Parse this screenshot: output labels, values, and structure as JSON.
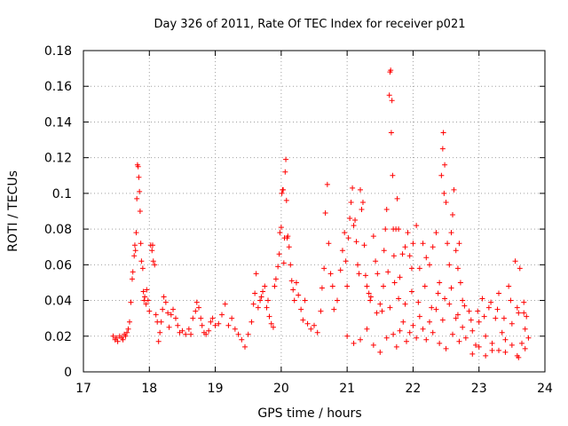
{
  "chart_data": {
    "type": "scatter",
    "title": "Day 326 of 2011, Rate Of TEC Index for receiver p021",
    "xlabel": "GPS time / hours",
    "ylabel": "ROTI / TECUs",
    "xlim": [
      17,
      24
    ],
    "ylim": [
      0,
      0.18
    ],
    "xticks": [
      17,
      18,
      19,
      20,
      21,
      22,
      23,
      24
    ],
    "yticks": [
      0,
      0.02,
      0.04,
      0.06,
      0.08,
      0.1,
      0.12,
      0.14,
      0.16,
      0.18
    ],
    "grid": true,
    "marker": "+",
    "color": "#ff0000",
    "series": [
      {
        "name": "p021",
        "points": [
          [
            17.45,
            0.02
          ],
          [
            17.48,
            0.018
          ],
          [
            17.5,
            0.019
          ],
          [
            17.52,
            0.017
          ],
          [
            17.55,
            0.02
          ],
          [
            17.58,
            0.019
          ],
          [
            17.6,
            0.018
          ],
          [
            17.62,
            0.021
          ],
          [
            17.64,
            0.02
          ],
          [
            17.66,
            0.022
          ],
          [
            17.68,
            0.024
          ],
          [
            17.7,
            0.028
          ],
          [
            17.72,
            0.039
          ],
          [
            17.74,
            0.052
          ],
          [
            17.75,
            0.056
          ],
          [
            17.77,
            0.065
          ],
          [
            17.78,
            0.071
          ],
          [
            17.79,
            0.068
          ],
          [
            17.8,
            0.078
          ],
          [
            17.81,
            0.097
          ],
          [
            17.82,
            0.116
          ],
          [
            17.83,
            0.115
          ],
          [
            17.84,
            0.109
          ],
          [
            17.85,
            0.101
          ],
          [
            17.86,
            0.09
          ],
          [
            17.87,
            0.072
          ],
          [
            17.88,
            0.062
          ],
          [
            17.9,
            0.058
          ],
          [
            17.91,
            0.045
          ],
          [
            17.92,
            0.04
          ],
          [
            17.93,
            0.042
          ],
          [
            17.95,
            0.038
          ],
          [
            17.96,
            0.046
          ],
          [
            17.98,
            0.04
          ],
          [
            18.0,
            0.034
          ],
          [
            18.02,
            0.071
          ],
          [
            18.04,
            0.068
          ],
          [
            18.05,
            0.071
          ],
          [
            18.06,
            0.062
          ],
          [
            18.08,
            0.06
          ],
          [
            18.1,
            0.032
          ],
          [
            18.12,
            0.028
          ],
          [
            18.14,
            0.017
          ],
          [
            18.16,
            0.022
          ],
          [
            18.18,
            0.028
          ],
          [
            18.2,
            0.035
          ],
          [
            18.22,
            0.042
          ],
          [
            18.25,
            0.039
          ],
          [
            18.28,
            0.033
          ],
          [
            18.3,
            0.025
          ],
          [
            18.33,
            0.032
          ],
          [
            18.36,
            0.035
          ],
          [
            18.4,
            0.03
          ],
          [
            18.43,
            0.026
          ],
          [
            18.46,
            0.022
          ],
          [
            18.5,
            0.023
          ],
          [
            18.55,
            0.021
          ],
          [
            18.6,
            0.024
          ],
          [
            18.63,
            0.021
          ],
          [
            18.66,
            0.03
          ],
          [
            18.7,
            0.034
          ],
          [
            18.72,
            0.039
          ],
          [
            18.75,
            0.036
          ],
          [
            18.78,
            0.03
          ],
          [
            18.8,
            0.026
          ],
          [
            18.83,
            0.022
          ],
          [
            18.86,
            0.021
          ],
          [
            18.9,
            0.023
          ],
          [
            18.93,
            0.028
          ],
          [
            18.96,
            0.03
          ],
          [
            19.0,
            0.026
          ],
          [
            19.05,
            0.027
          ],
          [
            19.1,
            0.032
          ],
          [
            19.15,
            0.038
          ],
          [
            19.2,
            0.026
          ],
          [
            19.25,
            0.03
          ],
          [
            19.3,
            0.024
          ],
          [
            19.35,
            0.021
          ],
          [
            19.4,
            0.018
          ],
          [
            19.45,
            0.014
          ],
          [
            19.5,
            0.021
          ],
          [
            19.55,
            0.028
          ],
          [
            19.58,
            0.038
          ],
          [
            19.6,
            0.044
          ],
          [
            19.62,
            0.055
          ],
          [
            19.65,
            0.036
          ],
          [
            19.68,
            0.04
          ],
          [
            19.7,
            0.042
          ],
          [
            19.72,
            0.045
          ],
          [
            19.75,
            0.048
          ],
          [
            19.78,
            0.036
          ],
          [
            19.8,
            0.04
          ],
          [
            19.82,
            0.031
          ],
          [
            19.85,
            0.027
          ],
          [
            19.88,
            0.025
          ],
          [
            19.9,
            0.048
          ],
          [
            19.92,
            0.052
          ],
          [
            19.95,
            0.059
          ],
          [
            19.97,
            0.066
          ],
          [
            19.98,
            0.078
          ],
          [
            20.0,
            0.081
          ],
          [
            20.01,
            0.1
          ],
          [
            20.02,
            0.102
          ],
          [
            20.03,
            0.102
          ],
          [
            20.04,
            0.061
          ],
          [
            20.05,
            0.075
          ],
          [
            20.06,
            0.112
          ],
          [
            20.07,
            0.119
          ],
          [
            20.08,
            0.096
          ],
          [
            20.09,
            0.075
          ],
          [
            20.1,
            0.076
          ],
          [
            20.12,
            0.07
          ],
          [
            20.14,
            0.06
          ],
          [
            20.16,
            0.051
          ],
          [
            20.18,
            0.046
          ],
          [
            20.2,
            0.04
          ],
          [
            20.23,
            0.05
          ],
          [
            20.26,
            0.043
          ],
          [
            20.3,
            0.035
          ],
          [
            20.33,
            0.029
          ],
          [
            20.36,
            0.04
          ],
          [
            20.4,
            0.027
          ],
          [
            20.45,
            0.024
          ],
          [
            20.5,
            0.026
          ],
          [
            20.55,
            0.022
          ],
          [
            20.6,
            0.034
          ],
          [
            20.62,
            0.047
          ],
          [
            20.65,
            0.058
          ],
          [
            20.67,
            0.089
          ],
          [
            20.7,
            0.105
          ],
          [
            20.72,
            0.072
          ],
          [
            20.75,
            0.055
          ],
          [
            20.78,
            0.048
          ],
          [
            20.8,
            0.035
          ],
          [
            20.85,
            0.04
          ],
          [
            20.9,
            0.057
          ],
          [
            20.93,
            0.068
          ],
          [
            20.96,
            0.078
          ],
          [
            20.98,
            0.062
          ],
          [
            21.0,
            0.048
          ],
          [
            21.02,
            0.075
          ],
          [
            21.04,
            0.086
          ],
          [
            21.06,
            0.095
          ],
          [
            21.08,
            0.103
          ],
          [
            21.1,
            0.082
          ],
          [
            21.12,
            0.085
          ],
          [
            21.14,
            0.073
          ],
          [
            21.16,
            0.06
          ],
          [
            21.18,
            0.055
          ],
          [
            21.2,
            0.102
          ],
          [
            21.22,
            0.091
          ],
          [
            21.24,
            0.095
          ],
          [
            21.26,
            0.071
          ],
          [
            21.28,
            0.054
          ],
          [
            21.3,
            0.048
          ],
          [
            21.33,
            0.044
          ],
          [
            21.36,
            0.042
          ],
          [
            21.4,
            0.076
          ],
          [
            21.43,
            0.062
          ],
          [
            21.46,
            0.055
          ],
          [
            21.5,
            0.038
          ],
          [
            21.53,
            0.034
          ],
          [
            21.56,
            0.068
          ],
          [
            21.58,
            0.08
          ],
          [
            21.6,
            0.091
          ],
          [
            21.62,
            0.056
          ],
          [
            21.64,
            0.155
          ],
          [
            21.65,
            0.168
          ],
          [
            21.66,
            0.169
          ],
          [
            21.67,
            0.134
          ],
          [
            21.68,
            0.152
          ],
          [
            21.69,
            0.11
          ],
          [
            21.7,
            0.08
          ],
          [
            21.71,
            0.065
          ],
          [
            21.72,
            0.05
          ],
          [
            21.74,
            0.08
          ],
          [
            21.76,
            0.097
          ],
          [
            21.78,
            0.08
          ],
          [
            21.8,
            0.053
          ],
          [
            21.84,
            0.066
          ],
          [
            21.88,
            0.07
          ],
          [
            21.92,
            0.078
          ],
          [
            21.95,
            0.065
          ],
          [
            21.98,
            0.058
          ],
          [
            22.0,
            0.072
          ],
          [
            22.05,
            0.082
          ],
          [
            22.1,
            0.058
          ],
          [
            22.15,
            0.072
          ],
          [
            22.2,
            0.064
          ],
          [
            22.25,
            0.06
          ],
          [
            22.3,
            0.07
          ],
          [
            22.35,
            0.078
          ],
          [
            22.4,
            0.05
          ],
          [
            22.43,
            0.11
          ],
          [
            22.45,
            0.125
          ],
          [
            22.46,
            0.134
          ],
          [
            22.47,
            0.1
          ],
          [
            22.48,
            0.116
          ],
          [
            22.5,
            0.095
          ],
          [
            22.52,
            0.072
          ],
          [
            22.55,
            0.06
          ],
          [
            22.58,
            0.078
          ],
          [
            22.6,
            0.088
          ],
          [
            22.62,
            0.102
          ],
          [
            22.65,
            0.068
          ],
          [
            22.68,
            0.058
          ],
          [
            22.7,
            0.072
          ],
          [
            22.72,
            0.05
          ],
          [
            22.75,
            0.04
          ],
          [
            21.0,
            0.02
          ],
          [
            21.1,
            0.016
          ],
          [
            21.2,
            0.018
          ],
          [
            21.3,
            0.024
          ],
          [
            21.4,
            0.015
          ],
          [
            21.5,
            0.011
          ],
          [
            21.6,
            0.019
          ],
          [
            21.7,
            0.021
          ],
          [
            21.75,
            0.014
          ],
          [
            21.8,
            0.023
          ],
          [
            21.85,
            0.028
          ],
          [
            21.9,
            0.017
          ],
          [
            21.95,
            0.022
          ],
          [
            22.0,
            0.026
          ],
          [
            22.05,
            0.019
          ],
          [
            22.1,
            0.031
          ],
          [
            22.15,
            0.024
          ],
          [
            22.2,
            0.018
          ],
          [
            22.25,
            0.028
          ],
          [
            22.3,
            0.022
          ],
          [
            22.35,
            0.035
          ],
          [
            22.4,
            0.016
          ],
          [
            22.45,
            0.029
          ],
          [
            22.5,
            0.013
          ],
          [
            22.55,
            0.038
          ],
          [
            22.6,
            0.021
          ],
          [
            22.65,
            0.03
          ],
          [
            22.7,
            0.017
          ],
          [
            22.75,
            0.025
          ],
          [
            22.8,
            0.019
          ],
          [
            22.85,
            0.034
          ],
          [
            22.9,
            0.023
          ],
          [
            22.95,
            0.015
          ],
          [
            23.0,
            0.028
          ],
          [
            23.05,
            0.041
          ],
          [
            23.1,
            0.02
          ],
          [
            23.15,
            0.036
          ],
          [
            23.2,
            0.012
          ],
          [
            23.25,
            0.03
          ],
          [
            23.3,
            0.044
          ],
          [
            23.35,
            0.022
          ],
          [
            23.4,
            0.018
          ],
          [
            23.45,
            0.048
          ],
          [
            23.5,
            0.027
          ],
          [
            23.55,
            0.062
          ],
          [
            23.58,
            0.009
          ],
          [
            23.6,
            0.033
          ],
          [
            23.62,
            0.058
          ],
          [
            23.65,
            0.016
          ],
          [
            23.68,
            0.039
          ],
          [
            23.7,
            0.024
          ],
          [
            23.72,
            0.031
          ],
          [
            23.75,
            0.019
          ],
          [
            21.35,
            0.04
          ],
          [
            21.45,
            0.033
          ],
          [
            21.55,
            0.048
          ],
          [
            21.65,
            0.036
          ],
          [
            21.78,
            0.041
          ],
          [
            21.88,
            0.038
          ],
          [
            21.98,
            0.045
          ],
          [
            22.08,
            0.039
          ],
          [
            22.18,
            0.048
          ],
          [
            22.28,
            0.036
          ],
          [
            22.38,
            0.044
          ],
          [
            22.48,
            0.041
          ],
          [
            22.58,
            0.047
          ],
          [
            22.68,
            0.032
          ],
          [
            22.78,
            0.037
          ],
          [
            22.88,
            0.029
          ],
          [
            22.98,
            0.034
          ],
          [
            23.08,
            0.031
          ],
          [
            23.18,
            0.039
          ],
          [
            23.28,
            0.035
          ],
          [
            23.38,
            0.03
          ],
          [
            23.48,
            0.04
          ],
          [
            23.58,
            0.036
          ],
          [
            23.68,
            0.033
          ],
          [
            22.9,
            0.01
          ],
          [
            23.0,
            0.014
          ],
          [
            23.1,
            0.009
          ],
          [
            23.2,
            0.016
          ],
          [
            23.3,
            0.012
          ],
          [
            23.4,
            0.011
          ],
          [
            23.5,
            0.015
          ],
          [
            23.6,
            0.008
          ],
          [
            23.7,
            0.013
          ]
        ]
      }
    ]
  }
}
